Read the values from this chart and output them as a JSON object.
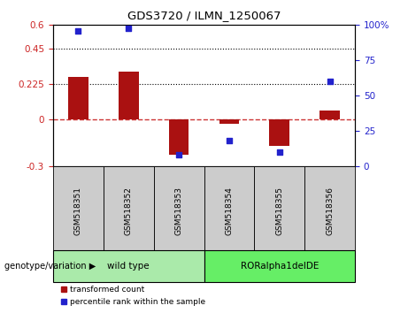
{
  "title": "GDS3720 / ILMN_1250067",
  "categories": [
    "GSM518351",
    "GSM518352",
    "GSM518353",
    "GSM518354",
    "GSM518355",
    "GSM518356"
  ],
  "bar_values": [
    0.27,
    0.3,
    -0.23,
    -0.03,
    -0.17,
    0.055
  ],
  "dot_values_pct": [
    96,
    98,
    8,
    18,
    10,
    60
  ],
  "ylim_left": [
    -0.3,
    0.6
  ],
  "ylim_right": [
    0,
    100
  ],
  "yticks_left": [
    -0.3,
    0,
    0.225,
    0.45,
    0.6
  ],
  "yticks_right": [
    0,
    25,
    50,
    75,
    100
  ],
  "ytick_labels_left": [
    "-0.3",
    "0",
    "0.225",
    "0.45",
    "0.6"
  ],
  "ytick_labels_right": [
    "0",
    "25",
    "50",
    "75",
    "100%"
  ],
  "hlines": [
    0.225,
    0.45
  ],
  "bar_color": "#aa1111",
  "dot_color": "#2222cc",
  "zero_line_color": "#cc3333",
  "hline_color": "#000000",
  "group_labels": [
    "wild type",
    "RORalpha1delDE"
  ],
  "group_colors_light": [
    "#aaeaaa",
    "#66ee66"
  ],
  "group_ranges": [
    [
      0,
      3
    ],
    [
      3,
      6
    ]
  ],
  "legend_items": [
    "transformed count",
    "percentile rank within the sample"
  ],
  "genotype_label": "genotype/variation",
  "bar_width": 0.4,
  "tick_label_color_left": "#cc2222",
  "tick_label_color_right": "#2222cc",
  "sample_box_color": "#cccccc"
}
